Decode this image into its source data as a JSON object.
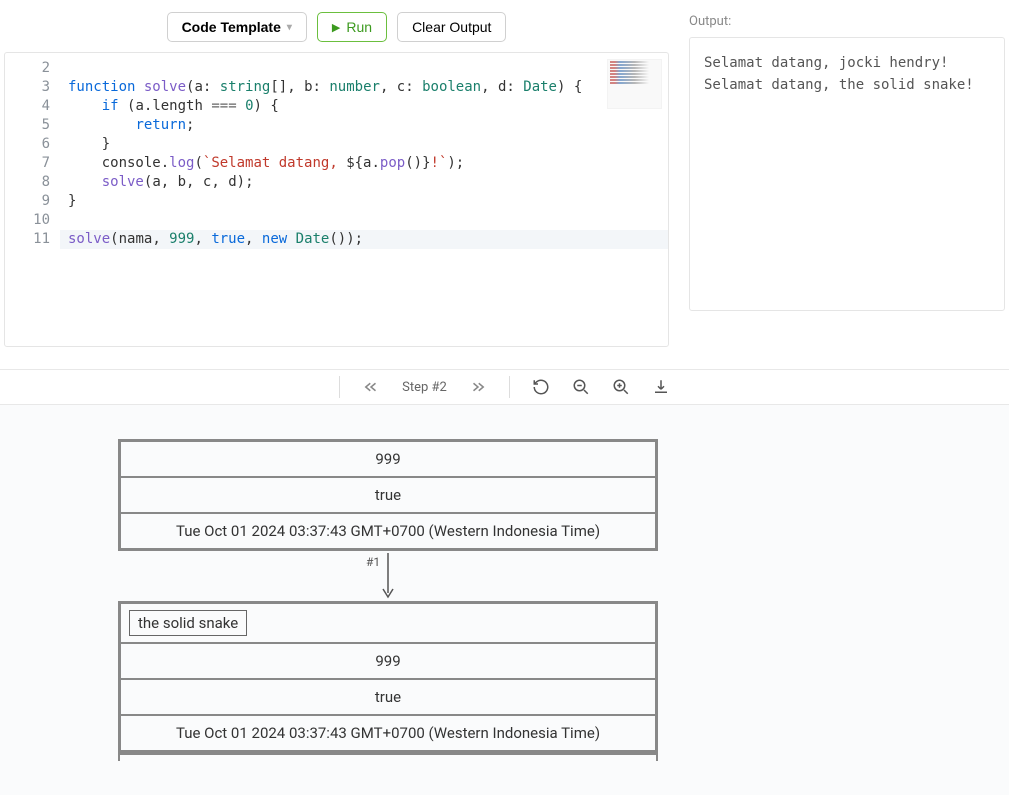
{
  "toolbar": {
    "template_label": "Code Template",
    "run_label": "Run",
    "clear_label": "Clear Output"
  },
  "editor": {
    "line_numbers": [
      "2",
      "3",
      "4",
      "5",
      "6",
      "7",
      "8",
      "9",
      "10",
      "11"
    ],
    "lines": [
      {
        "num": 2,
        "tokens": []
      },
      {
        "num": 3,
        "tokens": [
          {
            "t": "kw",
            "v": "function"
          },
          {
            "t": "plain",
            "v": " "
          },
          {
            "t": "fn",
            "v": "solve"
          },
          {
            "t": "punct",
            "v": "("
          },
          {
            "t": "plain",
            "v": "a"
          },
          {
            "t": "punct",
            "v": ": "
          },
          {
            "t": "type",
            "v": "string"
          },
          {
            "t": "punct",
            "v": "[], "
          },
          {
            "t": "plain",
            "v": "b"
          },
          {
            "t": "punct",
            "v": ": "
          },
          {
            "t": "type",
            "v": "number"
          },
          {
            "t": "punct",
            "v": ", "
          },
          {
            "t": "plain",
            "v": "c"
          },
          {
            "t": "punct",
            "v": ": "
          },
          {
            "t": "type",
            "v": "boolean"
          },
          {
            "t": "punct",
            "v": ", "
          },
          {
            "t": "plain",
            "v": "d"
          },
          {
            "t": "punct",
            "v": ": "
          },
          {
            "t": "type",
            "v": "Date"
          },
          {
            "t": "punct",
            "v": ") {"
          }
        ]
      },
      {
        "num": 4,
        "tokens": [
          {
            "t": "plain",
            "v": "    "
          },
          {
            "t": "kw",
            "v": "if"
          },
          {
            "t": "plain",
            "v": " "
          },
          {
            "t": "punct",
            "v": "("
          },
          {
            "t": "plain",
            "v": "a"
          },
          {
            "t": "punct",
            "v": "."
          },
          {
            "t": "plain",
            "v": "length "
          },
          {
            "t": "op",
            "v": "=== "
          },
          {
            "t": "num",
            "v": "0"
          },
          {
            "t": "punct",
            "v": ") {"
          }
        ]
      },
      {
        "num": 5,
        "tokens": [
          {
            "t": "plain",
            "v": "        "
          },
          {
            "t": "kw",
            "v": "return"
          },
          {
            "t": "punct",
            "v": ";"
          }
        ]
      },
      {
        "num": 6,
        "tokens": [
          {
            "t": "plain",
            "v": "    "
          },
          {
            "t": "punct",
            "v": "}"
          }
        ]
      },
      {
        "num": 7,
        "tokens": [
          {
            "t": "plain",
            "v": "    console"
          },
          {
            "t": "punct",
            "v": "."
          },
          {
            "t": "fn",
            "v": "log"
          },
          {
            "t": "punct",
            "v": "("
          },
          {
            "t": "str",
            "v": "`Selamat datang, "
          },
          {
            "t": "punct",
            "v": "${"
          },
          {
            "t": "plain",
            "v": "a"
          },
          {
            "t": "punct",
            "v": "."
          },
          {
            "t": "fn",
            "v": "pop"
          },
          {
            "t": "punct",
            "v": "()}"
          },
          {
            "t": "str",
            "v": "!`"
          },
          {
            "t": "punct",
            "v": ");"
          }
        ]
      },
      {
        "num": 8,
        "tokens": [
          {
            "t": "plain",
            "v": "    "
          },
          {
            "t": "fn",
            "v": "solve"
          },
          {
            "t": "punct",
            "v": "("
          },
          {
            "t": "plain",
            "v": "a"
          },
          {
            "t": "punct",
            "v": ", "
          },
          {
            "t": "plain",
            "v": "b"
          },
          {
            "t": "punct",
            "v": ", "
          },
          {
            "t": "plain",
            "v": "c"
          },
          {
            "t": "punct",
            "v": ", "
          },
          {
            "t": "plain",
            "v": "d"
          },
          {
            "t": "punct",
            "v": ");"
          }
        ]
      },
      {
        "num": 9,
        "tokens": [
          {
            "t": "punct",
            "v": "}"
          }
        ]
      },
      {
        "num": 10,
        "tokens": []
      },
      {
        "num": 11,
        "highlight": true,
        "tokens": [
          {
            "t": "fn",
            "v": "solve"
          },
          {
            "t": "punct",
            "v": "("
          },
          {
            "t": "plain",
            "v": "nama"
          },
          {
            "t": "punct",
            "v": ", "
          },
          {
            "t": "num",
            "v": "999"
          },
          {
            "t": "punct",
            "v": ", "
          },
          {
            "t": "bool",
            "v": "true"
          },
          {
            "t": "punct",
            "v": ", "
          },
          {
            "t": "kw",
            "v": "new"
          },
          {
            "t": "plain",
            "v": " "
          },
          {
            "t": "type",
            "v": "Date"
          },
          {
            "t": "punct",
            "v": "());"
          }
        ]
      }
    ]
  },
  "output": {
    "label": "Output:",
    "lines": [
      "Selamat datang, jocki hendry!",
      "Selamat datang, the solid snake!"
    ]
  },
  "viz": {
    "step_label": "Step #2",
    "frames": [
      {
        "rows": [
          {
            "type": "cell",
            "text": "999"
          },
          {
            "type": "cell",
            "text": "true"
          },
          {
            "type": "cell",
            "text": "Tue Oct 01 2024 03:37:43 GMT+0700 (Western Indonesia Time)"
          }
        ]
      },
      {
        "arrow_label": "#1",
        "rows": [
          {
            "type": "inner",
            "text": "the solid snake"
          },
          {
            "type": "cell",
            "text": "999"
          },
          {
            "type": "cell",
            "text": "true"
          },
          {
            "type": "cell",
            "text": "Tue Oct 01 2024 03:37:43 GMT+0700 (Western Indonesia Time)"
          }
        ]
      }
    ]
  },
  "colors": {
    "keyword": "#0969da",
    "function": "#7b5cc7",
    "type": "#1a7f6b",
    "number": "#1a7f6b",
    "string": "#c0392b",
    "run_accent": "#3c9a1f",
    "border": "#888"
  }
}
